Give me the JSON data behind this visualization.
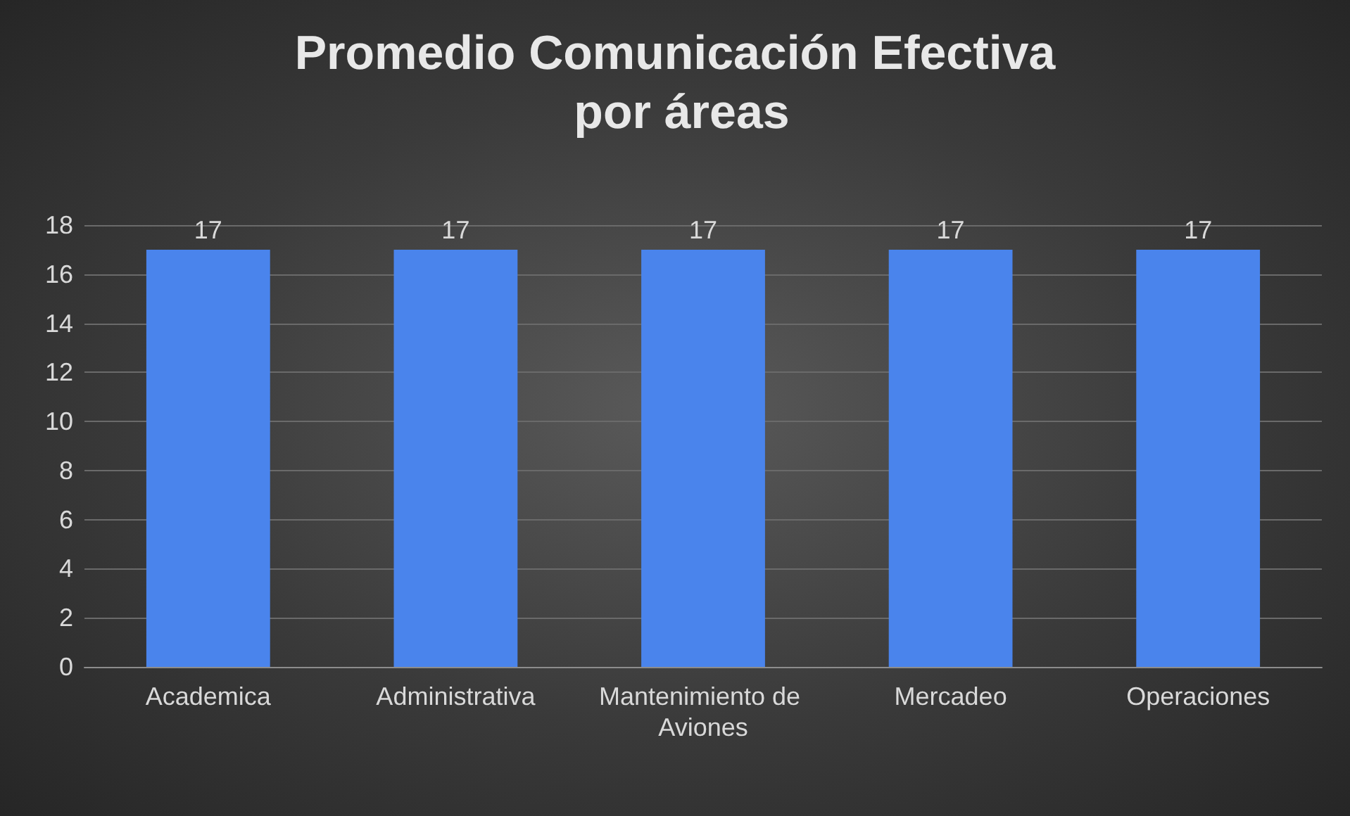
{
  "chart_data": {
    "type": "bar",
    "title": "Promedio Comunicación Efectiva por áreas",
    "categories": [
      "Academica",
      "Administrativa",
      "Mantenimiento de Aviones",
      "Mercadeo",
      "Operaciones"
    ],
    "values": [
      17,
      17,
      17,
      17,
      17
    ],
    "color": "#4a84ec",
    "ylim": [
      0,
      18
    ],
    "yticks": [
      0,
      2,
      4,
      6,
      8,
      10,
      12,
      14,
      16,
      18
    ],
    "grid": "y",
    "data_labels": true
  }
}
